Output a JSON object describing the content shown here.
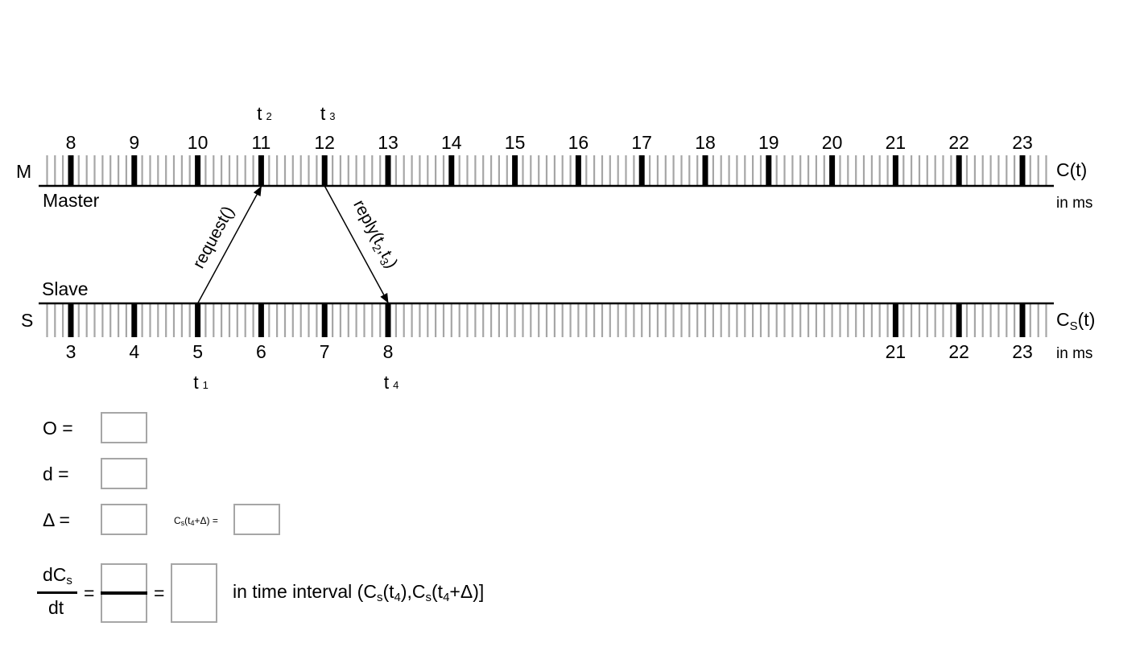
{
  "master": {
    "side_letter": "M",
    "name": "Master",
    "clock_label": "C(t)",
    "unit_label": "in ms",
    "labels": [
      "8",
      "9",
      "10",
      "11",
      "12",
      "13",
      "14",
      "15",
      "16",
      "17",
      "18",
      "19",
      "20",
      "21",
      "22",
      "23"
    ]
  },
  "slave": {
    "side_letter": "S",
    "name": "Slave",
    "clock_label": {
      "main": "C",
      "sub": "S",
      "rest": "(t)"
    },
    "unit_label": "in ms",
    "labels": [
      {
        "text": "3",
        "index": 0
      },
      {
        "text": "4",
        "index": 1
      },
      {
        "text": "5",
        "index": 2
      },
      {
        "text": "6",
        "index": 3
      },
      {
        "text": "7",
        "index": 4
      },
      {
        "text": "8",
        "index": 5
      },
      {
        "text": "21",
        "index": 13
      },
      {
        "text": "22",
        "index": 14
      },
      {
        "text": "23",
        "index": 15
      }
    ],
    "bold_indices": [
      0,
      1,
      2,
      3,
      4,
      5,
      13,
      14,
      15
    ]
  },
  "timestamps": {
    "t1": {
      "main": "t",
      "sub": "1",
      "line": "slave",
      "index": 2
    },
    "t2": {
      "main": "t",
      "sub": "2",
      "line": "master",
      "index": 3
    },
    "t3": {
      "main": "t",
      "sub": "3",
      "line": "master",
      "index": 4
    },
    "t4": {
      "main": "t",
      "sub": "4",
      "line": "slave",
      "index": 5
    }
  },
  "messages": {
    "request": {
      "label": "request()",
      "from": "t1",
      "to": "t2"
    },
    "reply": {
      "label_main": "reply(t",
      "sub1": "2",
      "sep": ",t",
      "sub2": "3",
      "close": ")",
      "from": "t3",
      "to": "t4"
    }
  },
  "form": {
    "offset": {
      "label": "O =",
      "value": ""
    },
    "delay": {
      "label": "d =",
      "value": ""
    },
    "delta": {
      "label": "Δ =",
      "value": ""
    },
    "cs_at": {
      "c": "C",
      "s": "s",
      "open": "(t",
      "four": "4",
      "tail": "+Δ) =",
      "value": ""
    },
    "rate": {
      "numerator_main": "dC",
      "numerator_sub": "s",
      "denominator": "dt",
      "eq1": "=",
      "eq2": "=",
      "frac_numerator": "",
      "frac_denominator": "",
      "result": "",
      "interval": {
        "pre": "in time interval (C",
        "s1": "s",
        "mid1": "(t",
        "four1": "4",
        "mid2": "),C",
        "s2": "s",
        "mid3": "(t",
        "four2": "4",
        "post": "+Δ)]"
      }
    }
  },
  "colors": {
    "minor_tick": "#a6a6a6",
    "major_tick": "#000000",
    "box_border": "#a6a6a6"
  }
}
